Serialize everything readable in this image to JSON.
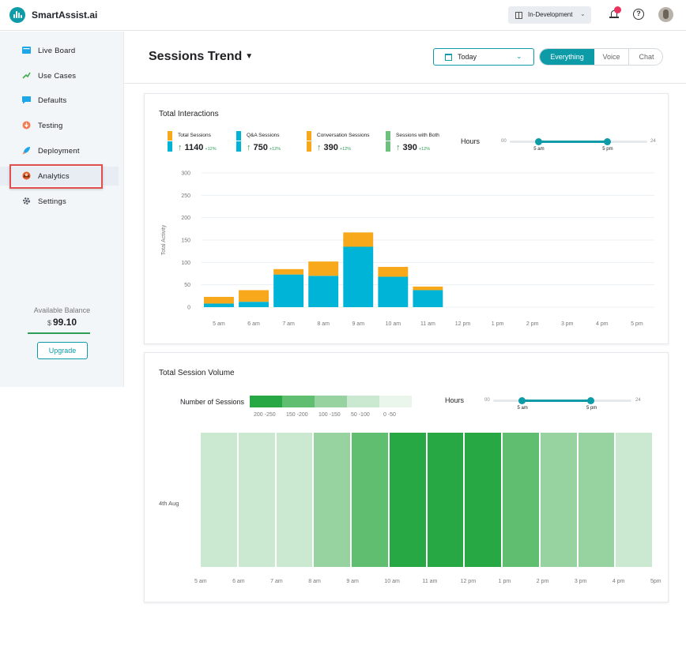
{
  "app": {
    "brand": "SmartAssist.ai",
    "environment": "In-Development"
  },
  "sidebar": {
    "items": [
      {
        "label": "Live Board",
        "icon": "live-board-icon"
      },
      {
        "label": "Use Cases",
        "icon": "use-cases-icon"
      },
      {
        "label": "Defaults",
        "icon": "defaults-icon"
      },
      {
        "label": "Testing",
        "icon": "testing-icon"
      },
      {
        "label": "Deployment",
        "icon": "deployment-icon"
      },
      {
        "label": "Analytics",
        "icon": "analytics-icon",
        "active": true
      },
      {
        "label": "Settings",
        "icon": "settings-icon"
      }
    ],
    "balance_label": "Available Balance",
    "balance_currency": "$",
    "balance_value": "99.10",
    "upgrade_label": "Upgrade"
  },
  "header": {
    "title": "Sessions Trend",
    "date_filter": "Today",
    "channels": [
      "Everything",
      "Voice",
      "Chat"
    ],
    "selected_channel": "Everything"
  },
  "interactions": {
    "title": "Total Interactions",
    "metrics": [
      {
        "label": "Total Sessions",
        "value": "1140",
        "change": "+12%",
        "colors": [
          "#f7a81b",
          "#00b4d8"
        ]
      },
      {
        "label": "Q&A Sessions",
        "value": "750",
        "change": "+12%",
        "colors": [
          "#00b4d8",
          "#00b4d8"
        ]
      },
      {
        "label": "Conversation Sessions",
        "value": "390",
        "change": "+12%",
        "colors": [
          "#f7a81b",
          "#f7a81b"
        ]
      },
      {
        "label": "Sessions with Both",
        "value": "390",
        "change": "+12%",
        "colors": [
          "#6fbf7f",
          "#6fbf7f"
        ]
      }
    ],
    "hours": {
      "label": "Hours",
      "min": "00",
      "max": "24",
      "start_label": "5 am",
      "end_label": "5 pm",
      "start": 5,
      "end": 17
    }
  },
  "volume": {
    "title": "Total Session Volume",
    "legend_label": "Number of Sessions",
    "legend": [
      {
        "range": "200 -250",
        "color": "#28a745"
      },
      {
        "range": "150 -200",
        "color": "#5fbe6f"
      },
      {
        "range": "100 -150",
        "color": "#97d3a1"
      },
      {
        "range": "50 -100",
        "color": "#cbe9d1"
      },
      {
        "range": "0 -50",
        "color": "#eaf6ec"
      }
    ],
    "hours": {
      "label": "Hours",
      "min": "00",
      "max": "24",
      "start_label": "5 am",
      "end_label": "5 pm",
      "start": 5,
      "end": 17
    },
    "row_label": "4th Aug",
    "cells": [
      {
        "hour": "5 am",
        "color": "#cbe9d1"
      },
      {
        "hour": "6 am",
        "color": "#cbe9d1"
      },
      {
        "hour": "7 am",
        "color": "#cbe9d1"
      },
      {
        "hour": "8 am",
        "color": "#97d3a1"
      },
      {
        "hour": "9 am",
        "color": "#5fbe6f"
      },
      {
        "hour": "10 am",
        "color": "#28a745"
      },
      {
        "hour": "11 am",
        "color": "#28a745"
      },
      {
        "hour": "12 pm",
        "color": "#28a745"
      },
      {
        "hour": "1 pm",
        "color": "#5fbe6f"
      },
      {
        "hour": "2 pm",
        "color": "#97d3a1"
      },
      {
        "hour": "3 pm",
        "color": "#97d3a1"
      },
      {
        "hour": "4 pm",
        "color": "#cbe9d1"
      }
    ],
    "x_labels": [
      "5 am",
      "6 am",
      "7 am",
      "8 am",
      "9 am",
      "10 am",
      "11 am",
      "12 pm",
      "1 pm",
      "2 pm",
      "3 pm",
      "4 pm",
      "5pm"
    ]
  },
  "chart_data": {
    "type": "bar",
    "title": "",
    "xlabel": "",
    "ylabel": "Total Activity",
    "ylim": [
      0,
      300
    ],
    "yticks": [
      0,
      50,
      100,
      150,
      200,
      250,
      300
    ],
    "categories": [
      "5 am",
      "6 am",
      "7 am",
      "8 am",
      "9 am",
      "10 am",
      "11 am",
      "12 pm",
      "1 pm",
      "2 pm",
      "3 pm",
      "4 pm",
      "5 pm"
    ],
    "stacked": true,
    "series": [
      {
        "color": "#00b4d8",
        "values": [
          8,
          12,
          73,
          70,
          135,
          68,
          38,
          0,
          0,
          0,
          0,
          0,
          0
        ]
      },
      {
        "color": "#f7a81b",
        "values": [
          15,
          26,
          12,
          32,
          32,
          22,
          8,
          0,
          0,
          0,
          0,
          0,
          0
        ]
      }
    ],
    "grid": true
  }
}
